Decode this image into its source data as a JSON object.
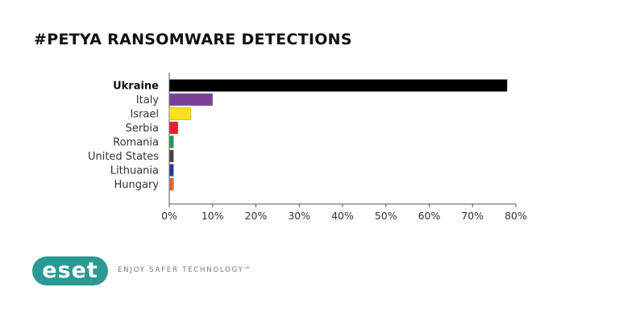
{
  "chart_data": {
    "type": "bar",
    "orientation": "horizontal",
    "title": "#PETYA RANSOMWARE DETECTIONS",
    "categories": [
      "Ukraine",
      "Italy",
      "Israel",
      "Serbia",
      "Romania",
      "United States",
      "Lithuania",
      "Hungary"
    ],
    "values": [
      78,
      10,
      5,
      2,
      1,
      1,
      1,
      1
    ],
    "colors": [
      "#000000",
      "#7b3f98",
      "#ffe01a",
      "#e8202a",
      "#1e9b4b",
      "#444444",
      "#1f3d9e",
      "#e8632a"
    ],
    "xlim": [
      0,
      80
    ],
    "xticks": [
      "0%",
      "10%",
      "20%",
      "30%",
      "40%",
      "50%",
      "60%",
      "70%",
      "80%"
    ],
    "grid": false,
    "highlight": "Ukraine"
  },
  "brand": {
    "logo": "eset",
    "tagline": "ENJOY SAFER TECHNOLOGY™"
  }
}
